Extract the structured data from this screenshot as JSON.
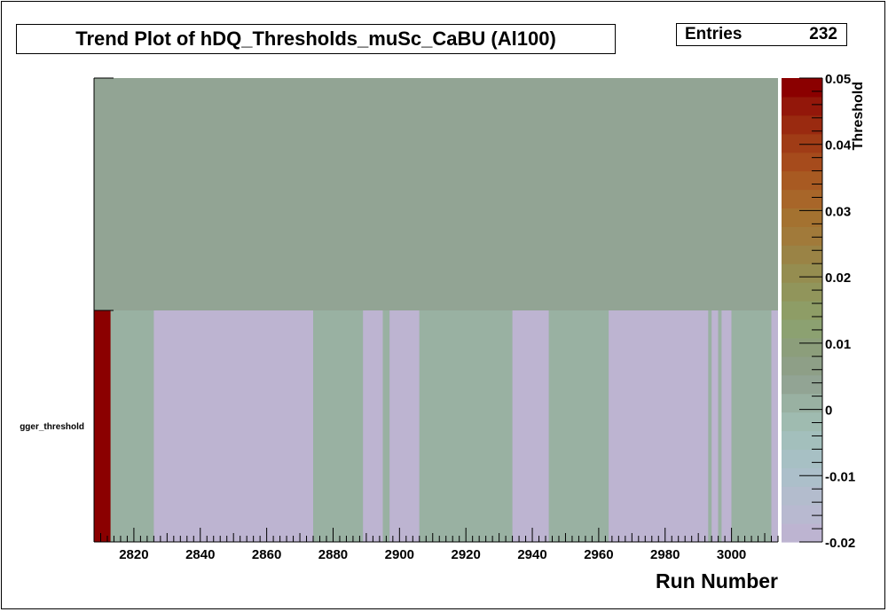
{
  "chart_data": {
    "type": "heatmap",
    "title": "Trend Plot of hDQ_Thresholds_muSc_CaBU (Al100)",
    "xlabel": "Run Number",
    "colorbar_label": "Threshold",
    "x_range": [
      2808,
      3014
    ],
    "x_ticks": [
      2820,
      2840,
      2860,
      2880,
      2900,
      2920,
      2940,
      2960,
      2980,
      3000
    ],
    "y_categories": [
      "trigger_threshold"
    ],
    "y_category_label_visible": "gger_threshold",
    "z_range": [
      -0.02,
      0.05
    ],
    "z_ticks": [
      -0.02,
      -0.01,
      0,
      0.01,
      0.02,
      0.03,
      0.04,
      0.05
    ],
    "empty_value_color": "#92a494",
    "cells": [
      {
        "x0": 2808,
        "x1": 2813,
        "value": 0.05
      },
      {
        "x0": 2813,
        "x1": 2826,
        "value": 0
      },
      {
        "x0": 2826,
        "x1": 2874,
        "value": -0.02
      },
      {
        "x0": 2874,
        "x1": 2889,
        "value": 0
      },
      {
        "x0": 2889,
        "x1": 2895,
        "value": -0.02
      },
      {
        "x0": 2895,
        "x1": 2897,
        "value": 0
      },
      {
        "x0": 2897,
        "x1": 2906,
        "value": -0.02
      },
      {
        "x0": 2906,
        "x1": 2934,
        "value": 0
      },
      {
        "x0": 2934,
        "x1": 2945,
        "value": -0.02
      },
      {
        "x0": 2945,
        "x1": 2963,
        "value": 0
      },
      {
        "x0": 2963,
        "x1": 2993,
        "value": -0.02
      },
      {
        "x0": 2993,
        "x1": 2994,
        "value": 0
      },
      {
        "x0": 2994,
        "x1": 2996,
        "value": -0.02
      },
      {
        "x0": 2996,
        "x1": 2997,
        "value": 0
      },
      {
        "x0": 2997,
        "x1": 3000,
        "value": -0.02
      },
      {
        "x0": 3000,
        "x1": 3012,
        "value": 0
      },
      {
        "x0": 3012,
        "x1": 3014,
        "value": -0.02
      }
    ],
    "palette": [
      "#bdb4d1",
      "#b8b9d0",
      "#b3bccd",
      "#acbfca",
      "#a7c0c4",
      "#a3bfbc",
      "#9fbbb0",
      "#99b1a2",
      "#92a494",
      "#8e9f87",
      "#8c9e7b",
      "#8ca171",
      "#8e9d66",
      "#91955b",
      "#958d50",
      "#9a8345",
      "#a17a3a",
      "#a47230",
      "#a86629",
      "#a85a22",
      "#a64b1c",
      "#a03c16",
      "#9a2a10",
      "#93170a",
      "#8b0000"
    ]
  },
  "stats": {
    "label": "Entries",
    "value": "232"
  }
}
